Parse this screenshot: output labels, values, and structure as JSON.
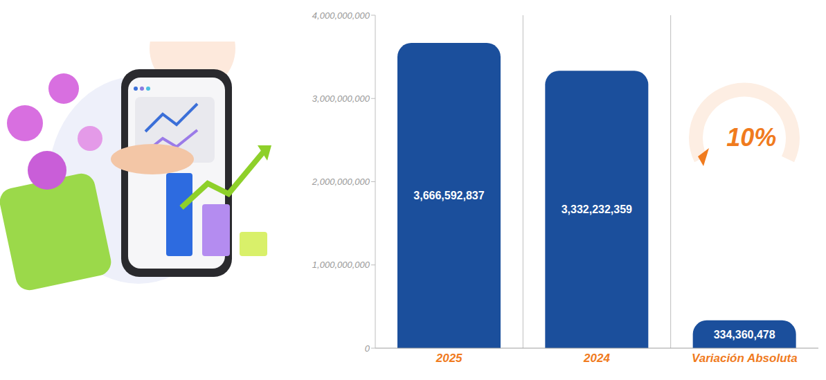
{
  "chart_data": {
    "type": "bar",
    "categories": [
      "2025",
      "2024",
      "Variación Absoluta"
    ],
    "values": [
      3666592837,
      3332232359,
      334360478
    ],
    "value_labels": [
      "3,666,592,837",
      "3,332,232,359",
      "334,360,478"
    ],
    "color": "#1b4f9c",
    "ylim": [
      0,
      4000000000
    ],
    "yticks": [
      0,
      {
        "value": 1000000000,
        "label": "1,000,000,000"
      },
      {
        "value": 2000000000,
        "label": "2,000,000,000"
      },
      {
        "value": 3000000000,
        "label": "3,000,000,000"
      },
      {
        "value": 4000000000,
        "label": "4,000,000,000"
      }
    ],
    "data_labels": true,
    "annotation": "10%"
  }
}
